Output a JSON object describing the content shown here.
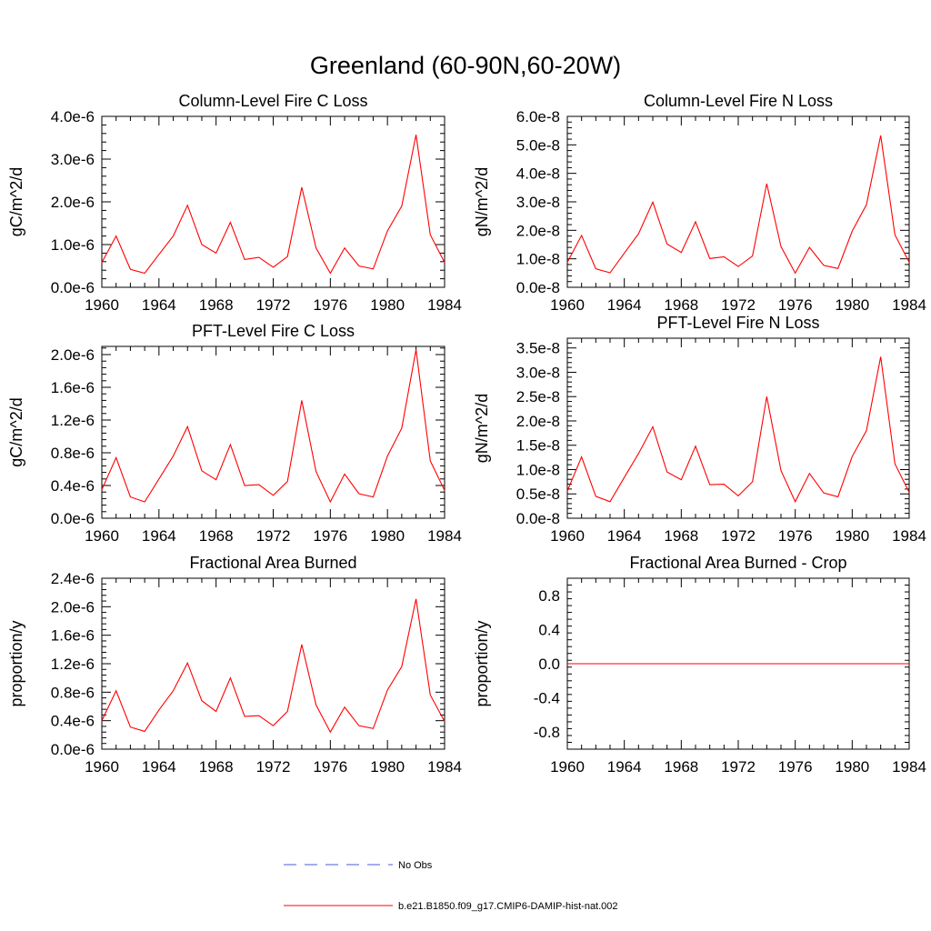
{
  "figure": {
    "title": "Greenland (60-90N,60-20W)",
    "legend": {
      "obs_label": "No Obs",
      "model_label": "b.e21.B1850.f09_g17.CMIP6-DAMIP-hist-nat.002",
      "obs_color": "#4a5ad8",
      "model_color": "#ff0000"
    }
  },
  "chart_data": [
    {
      "type": "line",
      "title": "Column-Level Fire C Loss",
      "ylabel": "gC/m^2/d",
      "xlim": [
        1960,
        1984
      ],
      "ylim": [
        0,
        4e-06
      ],
      "yticks": [
        0,
        1e-06,
        2e-06,
        3e-06,
        4e-06
      ],
      "ytick_labels": [
        "0.0e-6",
        "1.0e-6",
        "2.0e-6",
        "3.0e-6",
        "4.0e-6"
      ],
      "xticks": [
        1960,
        1964,
        1968,
        1972,
        1976,
        1980,
        1984
      ],
      "xtick_labels": [
        "1960",
        "1964",
        "1968",
        "1972",
        "1976",
        "1980",
        "1984"
      ],
      "x": [
        1960,
        1961,
        1962,
        1963,
        1964,
        1965,
        1966,
        1967,
        1968,
        1969,
        1970,
        1971,
        1972,
        1973,
        1974,
        1975,
        1976,
        1977,
        1978,
        1979,
        1980,
        1981,
        1982,
        1983,
        1984
      ],
      "series": [
        {
          "values": [
            5.8e-07,
            1.2e-06,
            4.2e-07,
            3.3e-07,
            7.7e-07,
            1.2e-06,
            1.92e-06,
            1e-06,
            8e-07,
            1.52e-06,
            6.5e-07,
            7e-07,
            4.7e-07,
            7.2e-07,
            2.34e-06,
            9.2e-07,
            3.3e-07,
            9.2e-07,
            5e-07,
            4.3e-07,
            1.32e-06,
            1.9e-06,
            3.57e-06,
            1.23e-06,
            5.8e-07
          ]
        }
      ]
    },
    {
      "type": "line",
      "title": "Column-Level Fire N Loss",
      "ylabel": "gN/m^2/d",
      "xlim": [
        1960,
        1984
      ],
      "ylim": [
        0,
        6e-08
      ],
      "yticks": [
        0,
        1e-08,
        2e-08,
        3e-08,
        4e-08,
        5e-08,
        6e-08
      ],
      "ytick_labels": [
        "0.0e-8",
        "1.0e-8",
        "2.0e-8",
        "3.0e-8",
        "4.0e-8",
        "5.0e-8",
        "6.0e-8"
      ],
      "xticks": [
        1960,
        1964,
        1968,
        1972,
        1976,
        1980,
        1984
      ],
      "xtick_labels": [
        "1960",
        "1964",
        "1968",
        "1972",
        "1976",
        "1980",
        "1984"
      ],
      "x": [
        1960,
        1961,
        1962,
        1963,
        1964,
        1965,
        1966,
        1967,
        1968,
        1969,
        1970,
        1971,
        1972,
        1973,
        1974,
        1975,
        1976,
        1977,
        1978,
        1979,
        1980,
        1981,
        1982,
        1983,
        1984
      ],
      "series": [
        {
          "values": [
            8.8e-09,
            1.82e-08,
            6.5e-09,
            5.1e-09,
            1.2e-08,
            1.88e-08,
            2.99e-08,
            1.52e-08,
            1.22e-08,
            2.3e-08,
            1.01e-08,
            1.07e-08,
            7.3e-09,
            1.1e-08,
            3.64e-08,
            1.43e-08,
            5e-09,
            1.4e-08,
            7.7e-09,
            6.6e-09,
            1.97e-08,
            2.9e-08,
            5.33e-08,
            1.84e-08,
            8.8e-09
          ]
        }
      ]
    },
    {
      "type": "line",
      "title": "PFT-Level Fire C Loss",
      "ylabel": "gC/m^2/d",
      "xlim": [
        1960,
        1984
      ],
      "ylim": [
        0,
        2.1e-06
      ],
      "yticks": [
        0,
        4e-07,
        8e-07,
        1.2e-06,
        1.6e-06,
        2e-06
      ],
      "ytick_labels": [
        "0.0e-6",
        "0.4e-6",
        "0.8e-6",
        "1.2e-6",
        "1.6e-6",
        "2.0e-6"
      ],
      "xticks": [
        1960,
        1964,
        1968,
        1972,
        1976,
        1980,
        1984
      ],
      "xtick_labels": [
        "1960",
        "1964",
        "1968",
        "1972",
        "1976",
        "1980",
        "1984"
      ],
      "x": [
        1960,
        1961,
        1962,
        1963,
        1964,
        1965,
        1966,
        1967,
        1968,
        1969,
        1970,
        1971,
        1972,
        1973,
        1974,
        1975,
        1976,
        1977,
        1978,
        1979,
        1980,
        1981,
        1982,
        1983,
        1984
      ],
      "series": [
        {
          "values": [
            3.5e-07,
            7.4e-07,
            2.6e-07,
            2e-07,
            4.8e-07,
            7.6e-07,
            1.12e-06,
            5.8e-07,
            4.7e-07,
            9e-07,
            4e-07,
            4.1e-07,
            2.8e-07,
            4.5e-07,
            1.44e-06,
            5.7e-07,
            2e-07,
            5.4e-07,
            3e-07,
            2.6e-07,
            7.6e-07,
            1.1e-06,
            2.06e-06,
            7e-07,
            3.4e-07
          ]
        }
      ]
    },
    {
      "type": "line",
      "title": "PFT-Level Fire N Loss",
      "ylabel": "gN/m^2/d",
      "xlim": [
        1960,
        1984
      ],
      "ylim": [
        0,
        3.7e-08
      ],
      "yticks": [
        0,
        5e-09,
        1e-08,
        1.5e-08,
        2e-08,
        2.5e-08,
        3e-08,
        3.5e-08
      ],
      "ytick_labels": [
        "0.0e-8",
        "0.5e-8",
        "1.0e-8",
        "1.5e-8",
        "2.0e-8",
        "2.5e-8",
        "3.0e-8",
        "3.5e-8"
      ],
      "xticks": [
        1960,
        1964,
        1968,
        1972,
        1976,
        1980,
        1984
      ],
      "xtick_labels": [
        "1960",
        "1964",
        "1968",
        "1972",
        "1976",
        "1980",
        "1984"
      ],
      "x": [
        1960,
        1961,
        1962,
        1963,
        1964,
        1965,
        1966,
        1967,
        1968,
        1969,
        1970,
        1971,
        1972,
        1973,
        1974,
        1975,
        1976,
        1977,
        1978,
        1979,
        1980,
        1981,
        1982,
        1983,
        1984
      ],
      "series": [
        {
          "values": [
            5.6e-09,
            1.26e-08,
            4.5e-09,
            3.4e-09,
            8.4e-09,
            1.33e-08,
            1.88e-08,
            9.5e-09,
            7.9e-09,
            1.48e-08,
            6.9e-09,
            7e-09,
            4.6e-09,
            7.5e-09,
            2.5e-08,
            9.8e-09,
            3.4e-09,
            9.2e-09,
            5.2e-09,
            4.4e-09,
            1.27e-08,
            1.8e-08,
            3.32e-08,
            1.12e-08,
            5.3e-09
          ]
        }
      ]
    },
    {
      "type": "line",
      "title": "Fractional Area Burned",
      "ylabel": "proportion/y",
      "xlim": [
        1960,
        1984
      ],
      "ylim": [
        0,
        2.4e-06
      ],
      "yticks": [
        0,
        4e-07,
        8e-07,
        1.2e-06,
        1.6e-06,
        2e-06,
        2.4e-06
      ],
      "ytick_labels": [
        "0.0e-6",
        "0.4e-6",
        "0.8e-6",
        "1.2e-6",
        "1.6e-6",
        "2.0e-6",
        "2.4e-6"
      ],
      "xticks": [
        1960,
        1964,
        1968,
        1972,
        1976,
        1980,
        1984
      ],
      "xtick_labels": [
        "1960",
        "1964",
        "1968",
        "1972",
        "1976",
        "1980",
        "1984"
      ],
      "x": [
        1960,
        1961,
        1962,
        1963,
        1964,
        1965,
        1966,
        1967,
        1968,
        1969,
        1970,
        1971,
        1972,
        1973,
        1974,
        1975,
        1976,
        1977,
        1978,
        1979,
        1980,
        1981,
        1982,
        1983,
        1984
      ],
      "series": [
        {
          "values": [
            4e-07,
            8.2e-07,
            3.1e-07,
            2.5e-07,
            5.5e-07,
            8.2e-07,
            1.21e-06,
            6.8e-07,
            5.3e-07,
            1e-06,
            4.6e-07,
            4.7e-07,
            3.3e-07,
            5.3e-07,
            1.47e-06,
            6.2e-07,
            2.4e-07,
            5.9e-07,
            3.3e-07,
            2.9e-07,
            8.3e-07,
            1.16e-06,
            2.11e-06,
            7.6e-07,
            3.9e-07
          ]
        }
      ]
    },
    {
      "type": "line",
      "title": "Fractional Area Burned - Crop",
      "ylabel": "proportion/y",
      "xlim": [
        1960,
        1984
      ],
      "ylim": [
        -1.0,
        1.0
      ],
      "yticks": [
        -0.8,
        -0.4,
        0.0,
        0.4,
        0.8
      ],
      "ytick_labels": [
        "-0.8",
        "-0.4",
        "0.0",
        "0.4",
        "0.8"
      ],
      "xticks": [
        1960,
        1964,
        1968,
        1972,
        1976,
        1980,
        1984
      ],
      "xtick_labels": [
        "1960",
        "1964",
        "1968",
        "1972",
        "1976",
        "1980",
        "1984"
      ],
      "x": [
        1960,
        1961,
        1962,
        1963,
        1964,
        1965,
        1966,
        1967,
        1968,
        1969,
        1970,
        1971,
        1972,
        1973,
        1974,
        1975,
        1976,
        1977,
        1978,
        1979,
        1980,
        1981,
        1982,
        1983,
        1984
      ],
      "series": [
        {
          "values": [
            0,
            0,
            0,
            0,
            0,
            0,
            0,
            0,
            0,
            0,
            0,
            0,
            0,
            0,
            0,
            0,
            0,
            0,
            0,
            0,
            0,
            0,
            0,
            0,
            0
          ]
        }
      ]
    }
  ]
}
